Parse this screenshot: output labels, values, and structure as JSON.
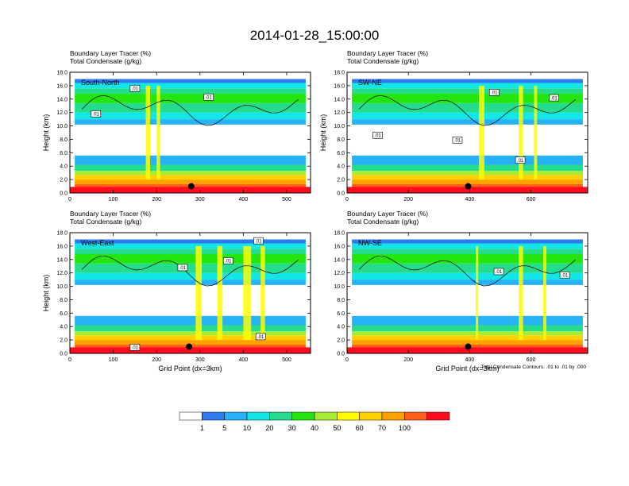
{
  "title": "2014-01-28_15:00:00",
  "footnote": "Total Condensate Contours: .01 to .01 by .000",
  "colors": {
    "levels": [
      "#ffffff",
      "#2e7bef",
      "#27b2f5",
      "#11e7e6",
      "#24dc8e",
      "#25e50e",
      "#a6ec37",
      "#fffb00",
      "#ffd000",
      "#ffa200",
      "#ff5e16",
      "#ff0a1e"
    ]
  },
  "colorbar": {
    "tick_labels": [
      "1",
      "5",
      "10",
      "20",
      "30",
      "40",
      "50",
      "60",
      "70",
      "100"
    ]
  },
  "chart_data": [
    {
      "type": "heatmap",
      "panel_label": "South-North",
      "subtitle_1": "Boundary Layer Tracer    (%)",
      "subtitle_2": "Total Condensate    (g/kg)",
      "xlabel": "",
      "ylabel": "Height (km)",
      "xlim": [
        0,
        555
      ],
      "ylim": [
        0,
        18
      ],
      "x_ticks": [
        "0",
        "100",
        "200",
        "300",
        "400",
        "500"
      ],
      "x_tick_values": [
        0,
        100,
        200,
        300,
        400,
        500
      ],
      "y_ticks": [
        "0.0",
        "2.0",
        "4.0",
        "6.0",
        "8.0",
        "10.0",
        "12.0",
        "14.0",
        "16.0",
        "18.0"
      ],
      "contour_labels": [
        {
          "text": ".01",
          "x": 150,
          "y": 15.6
        },
        {
          "text": ".01",
          "x": 320,
          "y": 14.3
        },
        {
          "text": ".01",
          "x": 60,
          "y": 11.8
        }
      ],
      "marker": {
        "x": 280,
        "y": 1.0
      }
    },
    {
      "type": "heatmap",
      "panel_label": "SW-NE",
      "subtitle_1": "Boundary Layer Tracer    (%)",
      "subtitle_2": "Total Condensate    (g/kg)",
      "xlabel": "",
      "ylabel": "Height (km)",
      "xlim": [
        0,
        785
      ],
      "ylim": [
        0,
        18
      ],
      "x_ticks": [
        "0",
        "200",
        "400",
        "600"
      ],
      "x_tick_values": [
        0,
        200,
        400,
        600
      ],
      "y_ticks": [
        "0.0",
        "2.0",
        "4.0",
        "6.0",
        "8.0",
        "10.0",
        "12.0",
        "14.0",
        "16.0",
        "18.0"
      ],
      "contour_labels": [
        {
          "text": ".01",
          "x": 480,
          "y": 15.0
        },
        {
          "text": ".01",
          "x": 675,
          "y": 14.2
        },
        {
          "text": ".01",
          "x": 100,
          "y": 8.6
        },
        {
          "text": ".01",
          "x": 360,
          "y": 7.9
        },
        {
          "text": ".01",
          "x": 565,
          "y": 4.9
        }
      ],
      "marker": {
        "x": 395,
        "y": 1.0
      }
    },
    {
      "type": "heatmap",
      "panel_label": "West-East",
      "subtitle_1": "Boundary Layer Tracer    (%)",
      "subtitle_2": "Total Condensate    (g/kg)",
      "xlabel": "Grid Point (dx=3km)",
      "ylabel": "Height (km)",
      "xlim": [
        0,
        555
      ],
      "ylim": [
        0,
        18
      ],
      "x_ticks": [
        "0",
        "100",
        "200",
        "300",
        "400",
        "500"
      ],
      "x_tick_values": [
        0,
        100,
        200,
        300,
        400,
        500
      ],
      "y_ticks": [
        "0.0",
        "2.0",
        "4.0",
        "6.0",
        "8.0",
        "10.0",
        "12.0",
        "14.0",
        "16.0",
        "18.0"
      ],
      "contour_labels": [
        {
          "text": ".01",
          "x": 435,
          "y": 16.8
        },
        {
          "text": ".01",
          "x": 365,
          "y": 13.8
        },
        {
          "text": ".01",
          "x": 260,
          "y": 12.8
        },
        {
          "text": ".01",
          "x": 440,
          "y": 2.5
        },
        {
          "text": ".01",
          "x": 150,
          "y": 0.9
        }
      ],
      "marker": {
        "x": 275,
        "y": 1.0
      }
    },
    {
      "type": "heatmap",
      "panel_label": "NW-SE",
      "subtitle_1": "Boundary Layer Tracer    (%)",
      "subtitle_2": "Total Condensate    (g/kg)",
      "xlabel": "Grid Point (dx=3km)",
      "ylabel": "",
      "xlim": [
        0,
        785
      ],
      "ylim": [
        0,
        18
      ],
      "x_ticks": [
        "0",
        "200",
        "400",
        "600"
      ],
      "x_tick_values": [
        0,
        200,
        400,
        600
      ],
      "y_ticks": [
        "0.0",
        "2.0",
        "4.0",
        "6.0",
        "8.0",
        "10.0",
        "12.0",
        "14.0",
        "16.0",
        "18.0"
      ],
      "contour_labels": [
        {
          "text": ".01",
          "x": 495,
          "y": 12.2
        },
        {
          "text": ".01",
          "x": 710,
          "y": 11.7
        }
      ],
      "marker": {
        "x": 395,
        "y": 1.0
      }
    }
  ]
}
